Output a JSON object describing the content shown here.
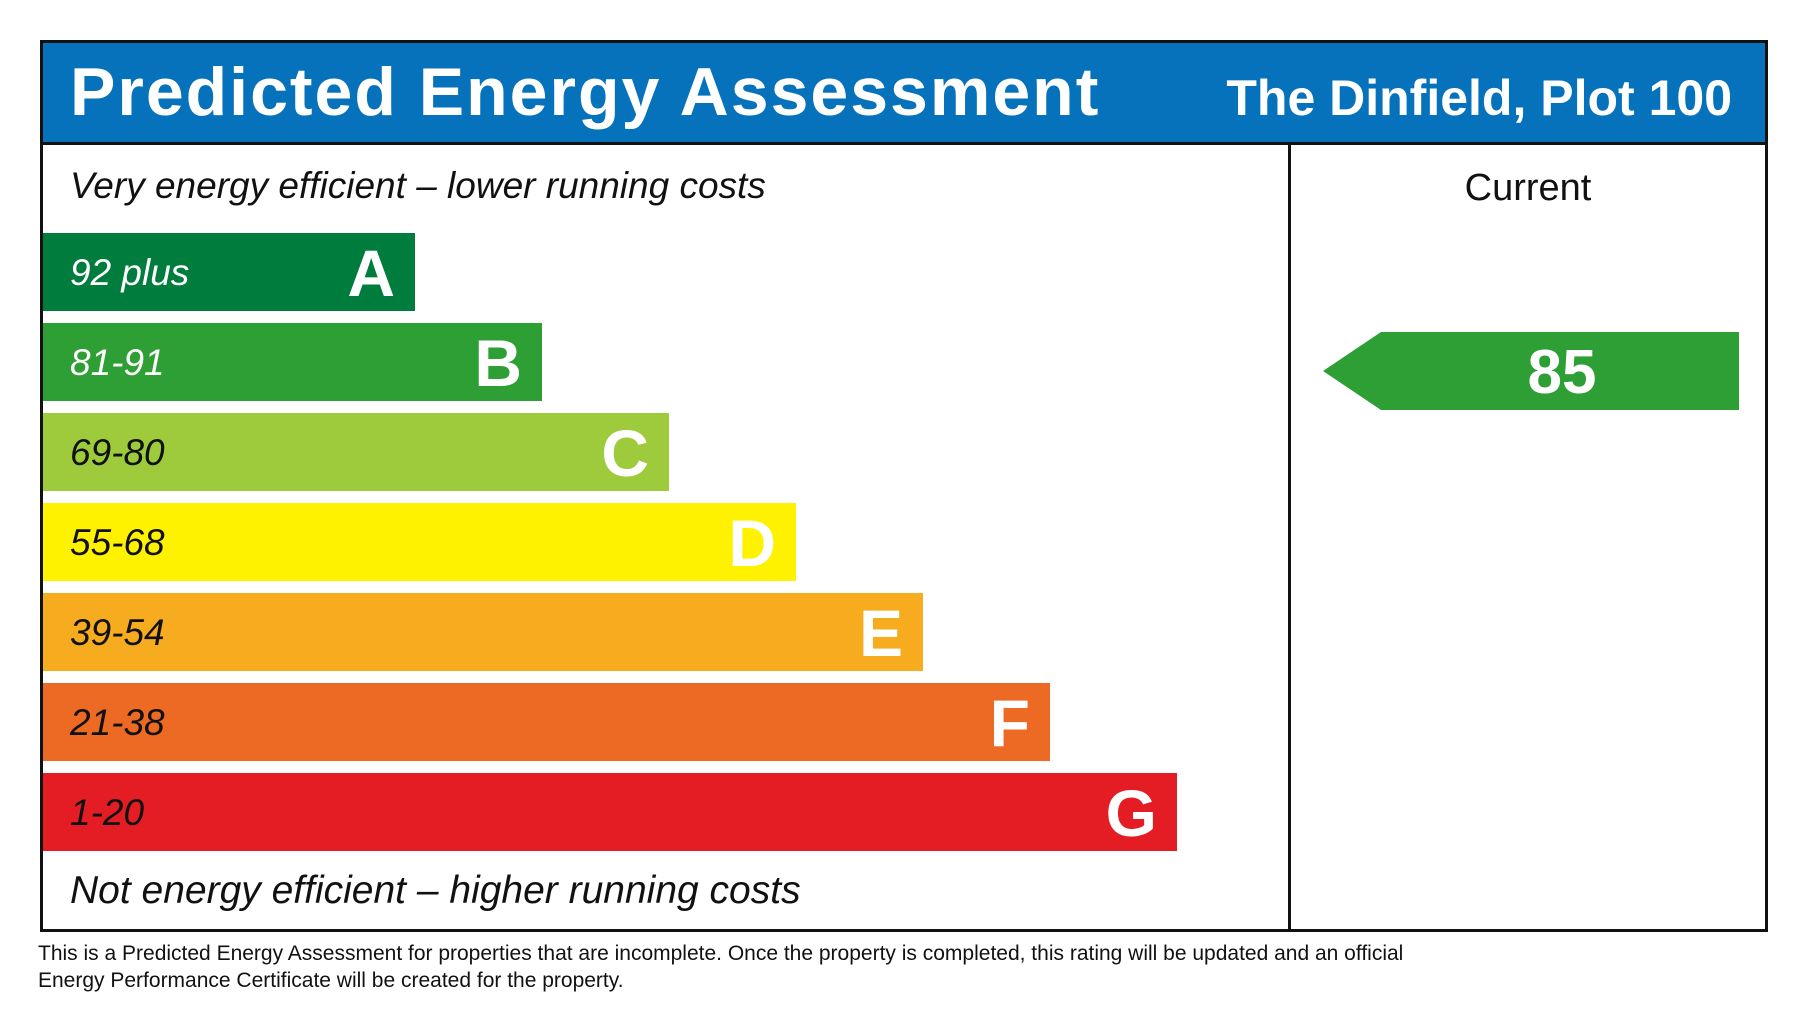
{
  "header": {
    "title": "Predicted Energy Assessment",
    "property": "The Dinfield, Plot 100",
    "background": "#0672BB"
  },
  "captions": {
    "top": "Very energy efficient – lower running costs",
    "bottom": "Not energy efficient – higher running costs"
  },
  "current_column": {
    "label": "Current"
  },
  "footnote": "This is a Predicted Energy Assessment for properties that are incomplete. Once the property is completed, this rating will be updated and an official Energy Performance Certificate will be created for the property.",
  "chart_data": {
    "type": "bar",
    "title": "Predicted Energy Assessment",
    "bands": [
      {
        "letter": "A",
        "range": "92 plus",
        "color": "#007C3D",
        "text_color": "#ffffff"
      },
      {
        "letter": "B",
        "range": "81-91",
        "color": "#2D9F35",
        "text_color": "#ffffff"
      },
      {
        "letter": "C",
        "range": "69-80",
        "color": "#9DCB3B",
        "text_color": "#111111"
      },
      {
        "letter": "D",
        "range": "55-68",
        "color": "#FFF200",
        "text_color": "#111111"
      },
      {
        "letter": "E",
        "range": "39-54",
        "color": "#F7AC1F",
        "text_color": "#111111"
      },
      {
        "letter": "F",
        "range": "21-38",
        "color": "#EC6A23",
        "text_color": "#111111"
      },
      {
        "letter": "G",
        "range": "1-20",
        "color": "#E31D23",
        "text_color": "#111111"
      }
    ],
    "current": {
      "value": 85,
      "band": "B",
      "color": "#2D9F35"
    }
  }
}
